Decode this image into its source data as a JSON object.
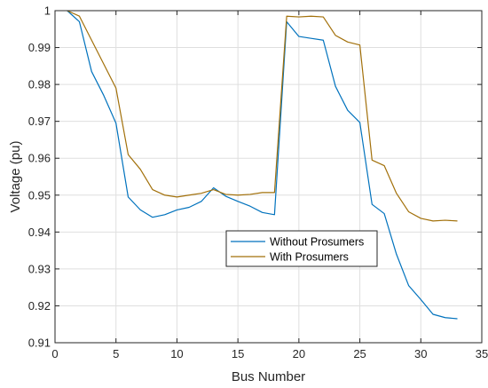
{
  "chart_data": {
    "type": "line",
    "title": "",
    "xlabel": "Bus Number",
    "ylabel": "Voltage (pu)",
    "xlim": [
      0,
      35
    ],
    "ylim": [
      0.91,
      1.0
    ],
    "xticks": [
      0,
      5,
      10,
      15,
      20,
      25,
      30,
      35
    ],
    "yticks": [
      0.91,
      0.92,
      0.93,
      0.94,
      0.95,
      0.96,
      0.97,
      0.98,
      0.99,
      1.0
    ],
    "xtick_labels": [
      "0",
      "5",
      "10",
      "15",
      "20",
      "25",
      "30",
      "35"
    ],
    "ytick_labels": [
      "0.91",
      "0.92",
      "0.93",
      "0.94",
      "0.95",
      "0.96",
      "0.97",
      "0.98",
      "0.99",
      "1"
    ],
    "grid": true,
    "legend_position": "center-right",
    "x": [
      1,
      2,
      3,
      4,
      5,
      6,
      7,
      8,
      9,
      10,
      11,
      12,
      13,
      14,
      15,
      16,
      17,
      18,
      19,
      20,
      21,
      22,
      23,
      24,
      25,
      26,
      27,
      28,
      29,
      30,
      31,
      32,
      33
    ],
    "series": [
      {
        "name": "Without Prosumers",
        "color": "#0072BD",
        "values": [
          1.0,
          0.997,
          0.9835,
          0.977,
          0.9695,
          0.9495,
          0.946,
          0.944,
          0.9447,
          0.946,
          0.9467,
          0.9483,
          0.952,
          0.9497,
          0.9483,
          0.947,
          0.9453,
          0.9447,
          0.997,
          0.993,
          0.9925,
          0.992,
          0.9795,
          0.973,
          0.9697,
          0.9475,
          0.945,
          0.934,
          0.9255,
          0.9217,
          0.9177,
          0.9168,
          0.9165
        ]
      },
      {
        "name": "With Prosumers",
        "color": "#A2700A",
        "values": [
          1.0,
          0.9985,
          0.992,
          0.9855,
          0.979,
          0.961,
          0.957,
          0.9515,
          0.95,
          0.9495,
          0.95,
          0.9505,
          0.9515,
          0.9502,
          0.95,
          0.9502,
          0.9507,
          0.9507,
          0.9985,
          0.9983,
          0.9985,
          0.9983,
          0.9933,
          0.9915,
          0.9907,
          0.9595,
          0.958,
          0.9505,
          0.9455,
          0.9437,
          0.943,
          0.9432,
          0.943
        ]
      }
    ]
  }
}
